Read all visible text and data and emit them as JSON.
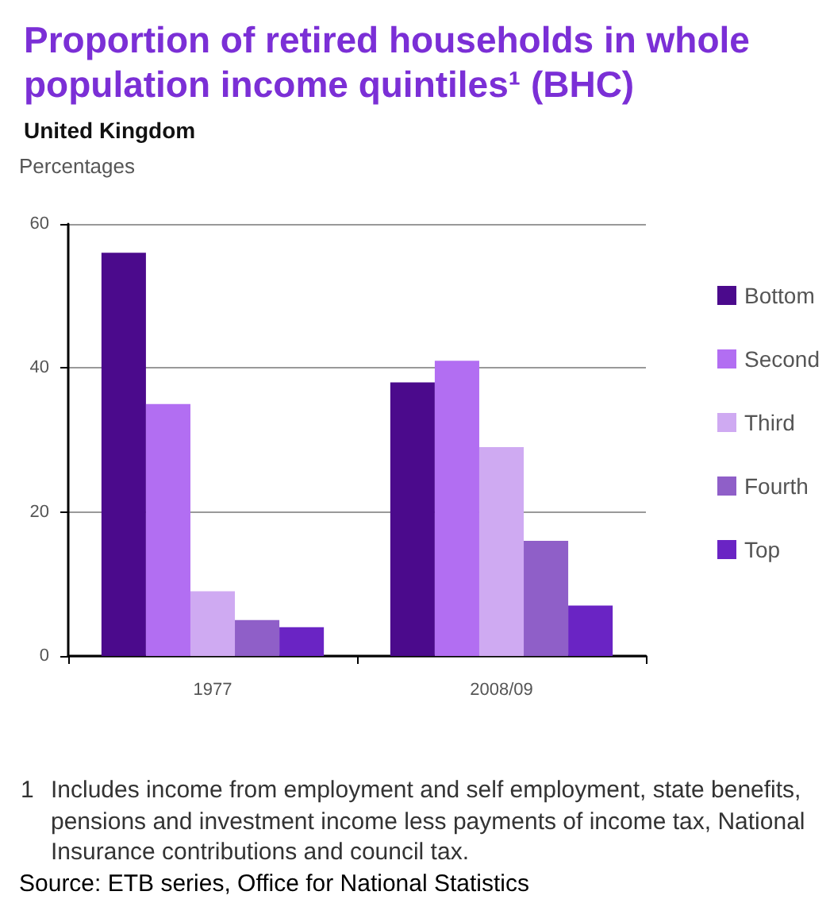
{
  "chart_data": {
    "type": "bar",
    "title": "Proportion of retired households in whole population income quintiles¹ (BHC)",
    "subtitle": "United Kingdom",
    "ylabel": "Percentages",
    "categories": [
      "1977",
      "2008/09"
    ],
    "series": [
      {
        "name": "Bottom",
        "color": "#4b0a8c",
        "values": [
          56,
          38
        ]
      },
      {
        "name": "Second",
        "color": "#b26ef2",
        "values": [
          35,
          41
        ]
      },
      {
        "name": "Third",
        "color": "#cfaaf2",
        "values": [
          9,
          29
        ]
      },
      {
        "name": "Fourth",
        "color": "#8f5fc8",
        "values": [
          5,
          16
        ]
      },
      {
        "name": "Top",
        "color": "#6a24c4",
        "values": [
          4,
          7
        ]
      }
    ],
    "ylim": [
      0,
      60
    ],
    "yticks": [
      0,
      20,
      40,
      60
    ],
    "grid": "y",
    "legend": "right",
    "annotations": [
      "1 Includes income from employment and self employment, state benefits, pensions and investment income less payments of income tax, National Insurance contributions and council tax.",
      "Source: ETB series, Office for National Statistics"
    ]
  }
}
